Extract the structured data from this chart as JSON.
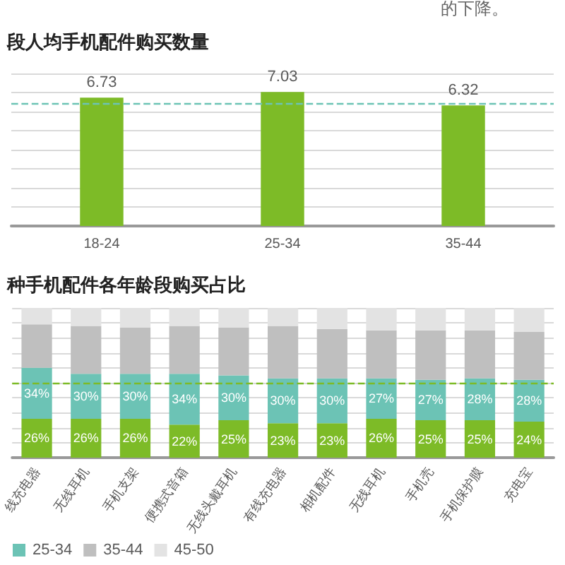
{
  "chart_data": [
    {
      "type": "bar",
      "title": "段人均手机配件购买数量",
      "annotations": [
        "的下降。"
      ],
      "categories": [
        "18-24",
        "25-34",
        "35-44"
      ],
      "series": [
        {
          "color": "#7dbb27",
          "values": [
            6.73,
            7.03,
            6.32
          ]
        }
      ],
      "data_labels": true,
      "ylim": [
        0,
        8
      ],
      "yticks": [
        {
          "value": 0,
          "label": null
        },
        {
          "value": 1,
          "label": null
        },
        {
          "value": 2,
          "label": null
        },
        {
          "value": 3,
          "label": null
        },
        {
          "value": 4,
          "label": null
        },
        {
          "value": 5,
          "label": null
        },
        {
          "value": 6,
          "label": null
        },
        {
          "value": 7,
          "label": null
        },
        {
          "value": 8,
          "label": null
        }
      ],
      "tick_labels": "x",
      "grid": "y",
      "ref_lines": [
        {
          "axis": "y",
          "value": 6.39,
          "color": "#6cc3b5",
          "line_style": "dashed"
        }
      ]
    },
    {
      "type": "bar",
      "title": "种手机配件各年龄段购买占比",
      "stacked": true,
      "categories": [
        "线充电器",
        "无线耳机",
        "手机支架",
        "便携式音箱",
        "无线头戴耳机",
        "有线充电器",
        "相机配件",
        "无线耳机",
        "手机壳",
        "手机保护膜",
        "充电宝"
      ],
      "series": [
        {
          "color": "#7dbb27",
          "values": [
            26,
            26,
            26,
            22,
            25,
            23,
            23,
            26,
            25,
            25,
            24
          ],
          "value_labels": [
            "26%",
            "26%",
            "26%",
            "22%",
            "25%",
            "23%",
            "23%",
            "26%",
            "25%",
            "25%",
            "24%"
          ]
        },
        {
          "name": "25-34",
          "color": "#6cc3b5",
          "values": [
            34,
            30,
            30,
            34,
            30,
            30,
            30,
            27,
            27,
            28,
            28
          ],
          "value_labels": [
            "34%",
            "30%",
            "30%",
            "34%",
            "30%",
            "30%",
            "30%",
            "27%",
            "27%",
            "28%",
            "28%"
          ]
        },
        {
          "name": "35-44",
          "color": "#bfbfbf",
          "values": [
            29,
            32,
            31,
            32,
            32,
            35,
            33,
            32,
            33,
            32,
            32
          ]
        },
        {
          "name": "45-50",
          "color": "#e3e3e3",
          "values": [
            11,
            12,
            13,
            12,
            13,
            12,
            14,
            15,
            15,
            15,
            16
          ]
        }
      ],
      "ylim": [
        0,
        100
      ],
      "yticks": [
        {
          "value": 0,
          "label": null
        },
        {
          "value": 10,
          "label": null
        },
        {
          "value": 20,
          "label": null
        },
        {
          "value": 30,
          "label": null
        },
        {
          "value": 40,
          "label": null
        },
        {
          "value": 50,
          "label": null
        },
        {
          "value": 60,
          "label": null
        },
        {
          "value": 70,
          "label": null
        },
        {
          "value": 80,
          "label": null
        },
        {
          "value": 90,
          "label": null
        },
        {
          "value": 100,
          "label": null
        }
      ],
      "tick_labels": "x",
      "grid": "y",
      "legend": "bottom left",
      "ref_lines": [
        {
          "axis": "y",
          "value": 50,
          "color": "#7dbb27",
          "line_style": "dashed"
        }
      ]
    }
  ]
}
